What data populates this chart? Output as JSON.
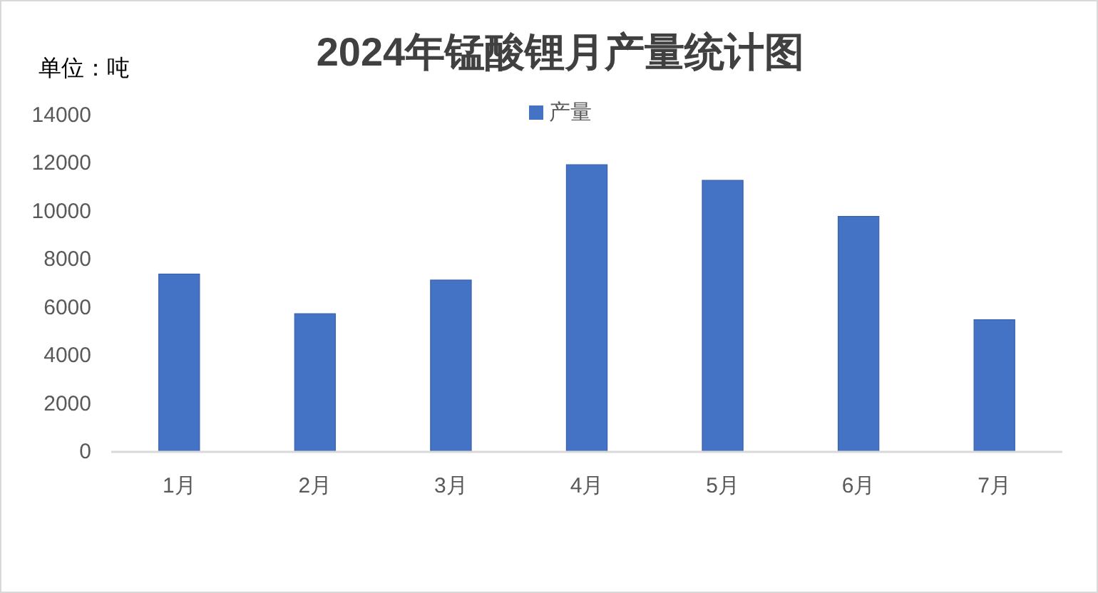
{
  "chart_data": {
    "type": "bar",
    "title": "2024年锰酸锂月产量统计图",
    "ylabel": "单位：吨",
    "categories": [
      "1月",
      "2月",
      "3月",
      "4月",
      "5月",
      "6月",
      "7月"
    ],
    "series": [
      {
        "name": "产量",
        "color": "#4472c4",
        "values": [
          7400,
          5750,
          7150,
          11950,
          11300,
          9800,
          5500
        ]
      }
    ],
    "ylim": [
      0,
      14000
    ],
    "yticks": [
      0,
      2000,
      4000,
      6000,
      8000,
      10000,
      12000,
      14000
    ],
    "legend": "top"
  }
}
